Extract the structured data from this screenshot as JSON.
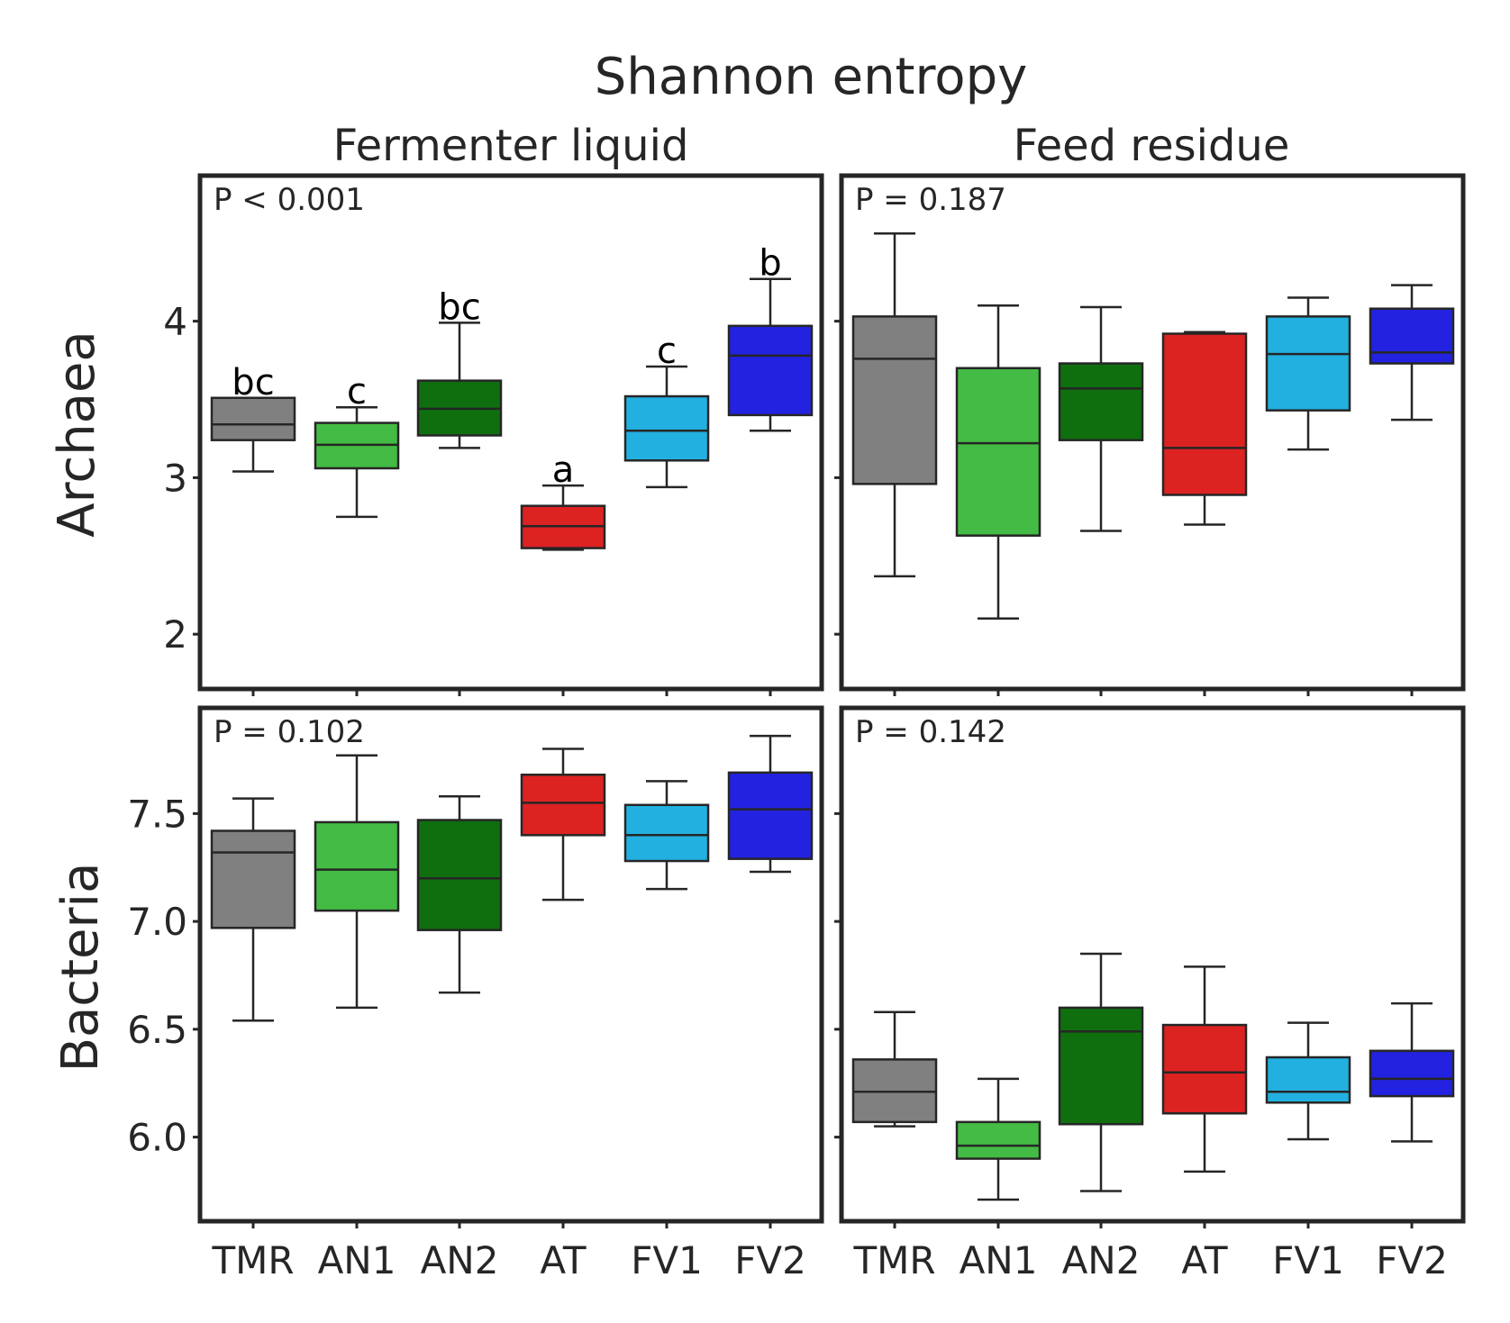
{
  "title": "Shannon entropy",
  "columns": [
    "Fermenter liquid",
    "Feed residue"
  ],
  "rows": [
    "Archaea",
    "Bacteria"
  ],
  "categories": [
    "TMR",
    "AN1",
    "AN2",
    "AT",
    "FV1",
    "FV2"
  ],
  "colors": [
    "#808080",
    "#44bb44",
    "#0f6f0f",
    "#dd2222",
    "#22b0e0",
    "#2222e0"
  ],
  "chart_data": [
    {
      "type": "box",
      "row": "Archaea",
      "column": "Fermenter liquid",
      "pvalue": "P < 0.001",
      "ylim": [
        1.65,
        4.93
      ],
      "yticks": [
        2,
        3,
        4
      ],
      "ytick_labels": [
        "2",
        "3",
        "4"
      ],
      "letters": [
        "bc",
        "c",
        "bc",
        "a",
        "c",
        "b"
      ],
      "boxes": [
        {
          "category": "TMR",
          "whisker_low": 3.04,
          "q1": 3.24,
          "median": 3.34,
          "q3": 3.51,
          "whisker_high": 3.51
        },
        {
          "category": "AN1",
          "whisker_low": 2.75,
          "q1": 3.06,
          "median": 3.21,
          "q3": 3.35,
          "whisker_high": 3.45
        },
        {
          "category": "AN2",
          "whisker_low": 3.19,
          "q1": 3.27,
          "median": 3.44,
          "q3": 3.62,
          "whisker_high": 3.99
        },
        {
          "category": "AT",
          "whisker_low": 2.54,
          "q1": 2.55,
          "median": 2.69,
          "q3": 2.82,
          "whisker_high": 2.95
        },
        {
          "category": "FV1",
          "whisker_low": 2.94,
          "q1": 3.11,
          "median": 3.3,
          "q3": 3.52,
          "whisker_high": 3.71
        },
        {
          "category": "FV2",
          "whisker_low": 3.3,
          "q1": 3.4,
          "median": 3.78,
          "q3": 3.97,
          "whisker_high": 4.27
        }
      ]
    },
    {
      "type": "box",
      "row": "Archaea",
      "column": "Feed residue",
      "pvalue": "P = 0.187",
      "ylim": [
        1.65,
        4.93
      ],
      "yticks": [
        2,
        3,
        4
      ],
      "boxes": [
        {
          "category": "TMR",
          "whisker_low": 2.37,
          "q1": 2.96,
          "median": 3.76,
          "q3": 4.03,
          "whisker_high": 4.56
        },
        {
          "category": "AN1",
          "whisker_low": 2.1,
          "q1": 2.63,
          "median": 3.22,
          "q3": 3.7,
          "whisker_high": 4.1
        },
        {
          "category": "AN2",
          "whisker_low": 2.66,
          "q1": 3.24,
          "median": 3.57,
          "q3": 3.73,
          "whisker_high": 4.09
        },
        {
          "category": "AT",
          "whisker_low": 2.7,
          "q1": 2.89,
          "median": 3.19,
          "q3": 3.92,
          "whisker_high": 3.93
        },
        {
          "category": "FV1",
          "whisker_low": 3.18,
          "q1": 3.43,
          "median": 3.79,
          "q3": 4.03,
          "whisker_high": 4.15
        },
        {
          "category": "FV2",
          "whisker_low": 3.37,
          "q1": 3.73,
          "median": 3.8,
          "q3": 4.08,
          "whisker_high": 4.23
        }
      ]
    },
    {
      "type": "box",
      "row": "Bacteria",
      "column": "Fermenter liquid",
      "pvalue": "P = 0.102",
      "ylim": [
        5.61,
        7.99
      ],
      "yticks": [
        6.0,
        6.5,
        7.0,
        7.5
      ],
      "ytick_labels": [
        "6.0",
        "6.5",
        "7.0",
        "7.5"
      ],
      "boxes": [
        {
          "category": "TMR",
          "whisker_low": 6.54,
          "q1": 6.97,
          "median": 7.32,
          "q3": 7.42,
          "whisker_high": 7.57
        },
        {
          "category": "AN1",
          "whisker_low": 6.6,
          "q1": 7.05,
          "median": 7.24,
          "q3": 7.46,
          "whisker_high": 7.77
        },
        {
          "category": "AN2",
          "whisker_low": 6.67,
          "q1": 6.96,
          "median": 7.2,
          "q3": 7.47,
          "whisker_high": 7.58
        },
        {
          "category": "AT",
          "whisker_low": 7.1,
          "q1": 7.4,
          "median": 7.55,
          "q3": 7.68,
          "whisker_high": 7.8
        },
        {
          "category": "FV1",
          "whisker_low": 7.15,
          "q1": 7.28,
          "median": 7.4,
          "q3": 7.54,
          "whisker_high": 7.65
        },
        {
          "category": "FV2",
          "whisker_low": 7.23,
          "q1": 7.29,
          "median": 7.52,
          "q3": 7.69,
          "whisker_high": 7.86
        }
      ]
    },
    {
      "type": "box",
      "row": "Bacteria",
      "column": "Feed residue",
      "pvalue": "P = 0.142",
      "ylim": [
        5.61,
        7.99
      ],
      "yticks": [
        6.0,
        6.5,
        7.0,
        7.5
      ],
      "boxes": [
        {
          "category": "TMR",
          "whisker_low": 6.05,
          "q1": 6.07,
          "median": 6.21,
          "q3": 6.36,
          "whisker_high": 6.58
        },
        {
          "category": "AN1",
          "whisker_low": 5.71,
          "q1": 5.9,
          "median": 5.96,
          "q3": 6.07,
          "whisker_high": 6.27
        },
        {
          "category": "AN2",
          "whisker_low": 5.75,
          "q1": 6.06,
          "median": 6.49,
          "q3": 6.6,
          "whisker_high": 6.85
        },
        {
          "category": "AT",
          "whisker_low": 5.84,
          "q1": 6.11,
          "median": 6.3,
          "q3": 6.52,
          "whisker_high": 6.79
        },
        {
          "category": "FV1",
          "whisker_low": 5.99,
          "q1": 6.16,
          "median": 6.21,
          "q3": 6.37,
          "whisker_high": 6.53
        },
        {
          "category": "FV2",
          "whisker_low": 5.98,
          "q1": 6.19,
          "median": 6.27,
          "q3": 6.4,
          "whisker_high": 6.62
        }
      ]
    }
  ]
}
